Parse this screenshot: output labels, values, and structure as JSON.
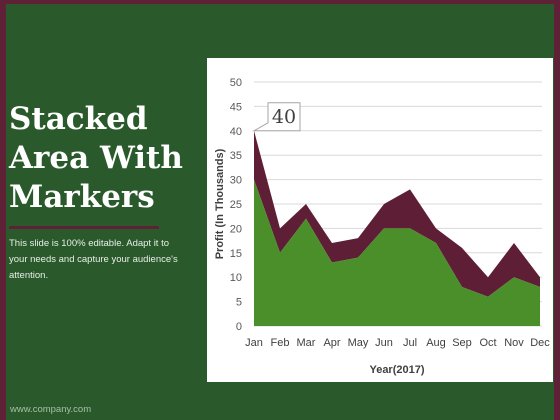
{
  "slide": {
    "title": "Stacked\nArea With\nMarkers",
    "description": "This slide is 100% editable. Adapt it to your needs and capture your audience's attention.",
    "footer": "www.company.com"
  },
  "colors": {
    "background": "#2a5a2b",
    "accent": "#5e2136",
    "series_bottom": "#4a8f2a",
    "series_top": "#5e1f36"
  },
  "chart_data": {
    "type": "area",
    "stacked": true,
    "categories": [
      "Jan",
      "Feb",
      "Mar",
      "Apr",
      "May",
      "Jun",
      "Jul",
      "Aug",
      "Sep",
      "Oct",
      "Nov",
      "Dec"
    ],
    "series": [
      {
        "values": [
          30,
          15,
          22,
          13,
          14,
          20,
          20,
          17,
          8,
          6,
          10,
          8
        ]
      },
      {
        "values": [
          10,
          5,
          3,
          4,
          4,
          5,
          8,
          3,
          8,
          4,
          7,
          2
        ]
      }
    ],
    "ylabel": "Profit (In Thousands)",
    "xlabel": "Year(2017)",
    "ylim": [
      0,
      50
    ],
    "yticks": [
      "0",
      "5",
      "10",
      "15",
      "20",
      "25",
      "30",
      "35",
      "40",
      "45",
      "50"
    ],
    "grid": true,
    "annotation": {
      "text": "40",
      "category": "Jan",
      "value": 40
    }
  }
}
